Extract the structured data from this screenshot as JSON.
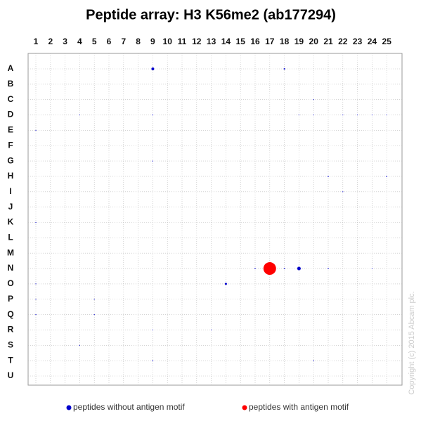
{
  "chart_data": {
    "type": "bubble",
    "title": "Peptide array: H3 K56me2 (ab177294)",
    "x_categories": [
      1,
      2,
      3,
      4,
      5,
      6,
      7,
      8,
      9,
      10,
      11,
      12,
      13,
      14,
      15,
      16,
      17,
      18,
      19,
      20,
      21,
      22,
      23,
      24,
      25
    ],
    "y_categories": [
      "A",
      "B",
      "C",
      "D",
      "E",
      "F",
      "G",
      "H",
      "I",
      "J",
      "K",
      "L",
      "M",
      "N",
      "O",
      "P",
      "Q",
      "R",
      "S",
      "T",
      "U"
    ],
    "grid": true,
    "legend": "bottom",
    "series": [
      {
        "name": "peptides without antigen motif",
        "color": "#0000cc",
        "x": [
          9,
          18,
          20,
          4,
          9,
          19,
          20,
          22,
          23,
          24,
          25,
          1,
          9,
          21,
          25,
          22,
          1,
          16,
          18,
          19,
          21,
          24,
          1,
          14,
          1,
          5,
          1,
          5,
          9,
          13,
          4,
          9,
          20
        ],
        "y": [
          "A",
          "A",
          "C",
          "D",
          "D",
          "D",
          "D",
          "D",
          "D",
          "D",
          "D",
          "E",
          "G",
          "H",
          "H",
          "I",
          "K",
          "N",
          "N",
          "N",
          "N",
          "N",
          "O",
          "O",
          "P",
          "P",
          "Q",
          "Q",
          "R",
          "R",
          "S",
          "T",
          "T"
        ],
        "sizes": [
          2,
          1,
          0.5,
          0.5,
          0.7,
          0.5,
          0.5,
          0.5,
          0.5,
          0.5,
          0.5,
          0.5,
          0.3,
          0.8,
          0.8,
          0.5,
          0.5,
          0.8,
          0.8,
          2.5,
          0.8,
          0.5,
          0.3,
          1.5,
          0.3,
          0.3,
          0.3,
          0.3,
          0.6,
          0.5,
          0.6,
          0.7,
          0.5
        ]
      },
      {
        "name": "peptides with antigen motif",
        "color": "#ff0000",
        "x": [
          17
        ],
        "y": [
          "N"
        ],
        "sizes": [
          9
        ]
      }
    ],
    "copyright": "Copyright (c) 2015 Abcam plc."
  }
}
